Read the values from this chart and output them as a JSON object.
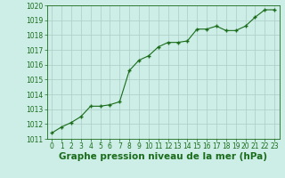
{
  "x": [
    0,
    1,
    2,
    3,
    4,
    5,
    6,
    7,
    8,
    9,
    10,
    11,
    12,
    13,
    14,
    15,
    16,
    17,
    18,
    19,
    20,
    21,
    22,
    23
  ],
  "y": [
    1011.4,
    1011.8,
    1012.1,
    1012.5,
    1013.2,
    1013.2,
    1013.3,
    1013.5,
    1015.6,
    1016.3,
    1016.6,
    1017.2,
    1017.5,
    1017.5,
    1017.6,
    1018.4,
    1018.4,
    1018.6,
    1018.3,
    1018.3,
    1018.6,
    1019.2,
    1019.7,
    1019.7
  ],
  "line_color": "#1a6b1a",
  "marker_color": "#1a6b1a",
  "bg_color": "#cceee6",
  "grid_color": "#aaccc4",
  "xlabel": "Graphe pression niveau de la mer (hPa)",
  "xlim": [
    -0.5,
    23.5
  ],
  "ylim": [
    1011,
    1020
  ],
  "yticks": [
    1011,
    1012,
    1013,
    1014,
    1015,
    1016,
    1017,
    1018,
    1019,
    1020
  ],
  "xticks": [
    0,
    1,
    2,
    3,
    4,
    5,
    6,
    7,
    8,
    9,
    10,
    11,
    12,
    13,
    14,
    15,
    16,
    17,
    18,
    19,
    20,
    21,
    22,
    23
  ],
  "tick_color": "#1a6b1a",
  "tick_fontsize": 5.5,
  "xlabel_fontsize": 7.5,
  "xlabel_fontweight": "bold"
}
